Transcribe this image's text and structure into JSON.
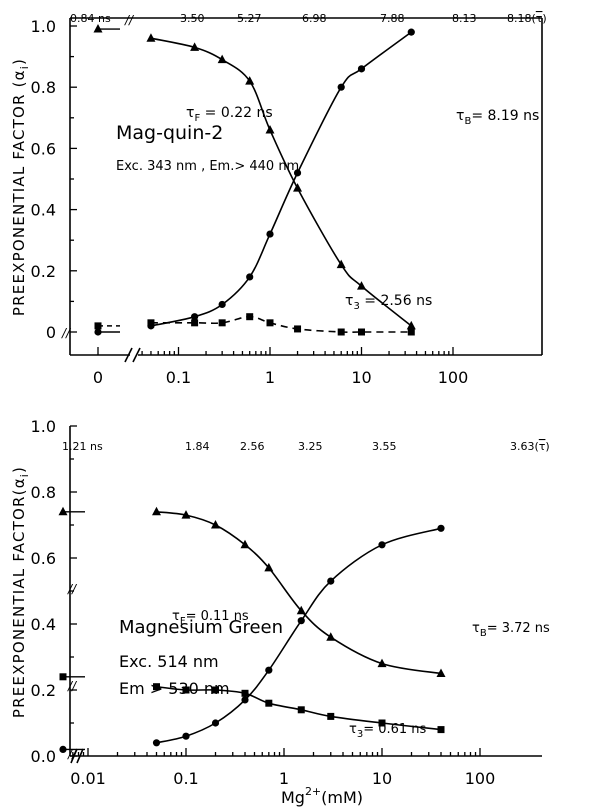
{
  "chart_data": [
    {
      "type": "line",
      "panel": "top",
      "title": "",
      "ylabel": "PREEXPONENTIAL FACTOR (α",
      "ylabel_sub": "i",
      "ylabel_close": ")",
      "xscale": "log",
      "ylim": [
        0,
        1.0
      ],
      "yticks": [
        "0",
        "0.2",
        "0.4",
        "0.6",
        "0.8",
        "1.0"
      ],
      "xticks": [
        "0",
        "0.1",
        "1",
        "10",
        "100"
      ],
      "top_labels": [
        "0.84 ns",
        "3.50",
        "5.27",
        "6.98",
        "7.88",
        "8.13",
        "8.18"
      ],
      "top_tau_bar": "τ",
      "annotations": {
        "dye": "Mag-quin-2",
        "conditions": "Exc. 343 nm , Em.> 440 nm",
        "tauF_main": "τ",
        "tauF_sub": "F",
        "tauF_val": " = 0.22 ns",
        "tauB_main": "τ",
        "tauB_sub": "B",
        "tauB_val": "= 8.19 ns",
        "tau3_main": "τ",
        "tau3_sub": "3",
        "tau3_val": " = 2.56 ns",
        "break_mark": "//"
      },
      "series": [
        {
          "marker": "triangle",
          "style": "solid",
          "zero_value": 0.99,
          "x": [
            0.05,
            0.15,
            0.3,
            0.6,
            1.0,
            2.0,
            6.0,
            10.0,
            35.0
          ],
          "y": [
            0.96,
            0.93,
            0.89,
            0.82,
            0.66,
            0.47,
            0.22,
            0.15,
            0.02
          ]
        },
        {
          "marker": "circle",
          "style": "solid",
          "zero_value": 0.0,
          "x": [
            0.05,
            0.15,
            0.3,
            0.6,
            1.0,
            2.0,
            6.0,
            10.0,
            35.0
          ],
          "y": [
            0.02,
            0.05,
            0.09,
            0.18,
            0.32,
            0.52,
            0.8,
            0.86,
            0.98
          ]
        },
        {
          "marker": "square",
          "style": "dashed",
          "zero_value": 0.02,
          "x": [
            0.05,
            0.15,
            0.3,
            0.6,
            1.0,
            2.0,
            6.0,
            10.0,
            35.0
          ],
          "y": [
            0.03,
            0.03,
            0.03,
            0.05,
            0.03,
            0.01,
            0.0,
            0.0,
            0.0
          ]
        }
      ]
    },
    {
      "type": "line",
      "panel": "bottom",
      "title": "",
      "ylabel": "PREEXPONENTIAL FACTOR(α",
      "ylabel_sub": "i",
      "ylabel_close": ")",
      "xlabel": "Mg",
      "xlabel_sup": "2+",
      "xlabel_unit": "(mM)",
      "xscale": "log",
      "ylim": [
        0,
        1.0
      ],
      "yticks": [
        "0.0",
        "0.2",
        "0.4",
        "0.6",
        "0.8",
        "1.0"
      ],
      "xticks": [
        "0.01",
        "0.1",
        "1",
        "10",
        "100"
      ],
      "top_labels": [
        "1.21 ns",
        "1.84",
        "2.56",
        "3.25",
        "3.55",
        "3.63"
      ],
      "top_tau_bar": "τ",
      "annotations": {
        "dye": "Magnesium Green",
        "exc": "Exc. 514 nm",
        "em": "Em > 530 nm",
        "tauF_main": "τ",
        "tauF_sub": "F",
        "tauF_val": "= 0.11 ns",
        "tauB_main": "τ",
        "tauB_sub": "B",
        "tauB_val": "= 3.72 ns",
        "tau3_main": "τ",
        "tau3_sub": "3",
        "tau3_val": "= 0.61 ns",
        "break_mark": "//"
      },
      "series": [
        {
          "marker": "triangle",
          "style": "solid",
          "zero_value": 0.74,
          "x": [
            0.05,
            0.1,
            0.2,
            0.4,
            0.7,
            1.5,
            3.0,
            10.0,
            40.0
          ],
          "y": [
            0.74,
            0.73,
            0.7,
            0.64,
            0.57,
            0.44,
            0.36,
            0.28,
            0.25
          ]
        },
        {
          "marker": "circle",
          "style": "solid",
          "zero_value": 0.02,
          "x": [
            0.05,
            0.1,
            0.2,
            0.4,
            0.7,
            1.5,
            3.0,
            10.0,
            40.0
          ],
          "y": [
            0.04,
            0.06,
            0.1,
            0.17,
            0.26,
            0.41,
            0.53,
            0.64,
            0.69
          ]
        },
        {
          "marker": "square",
          "style": "solid",
          "zero_value": 0.24,
          "x": [
            0.05,
            0.1,
            0.2,
            0.4,
            0.7,
            1.5,
            3.0,
            10.0,
            40.0
          ],
          "y": [
            0.21,
            0.2,
            0.2,
            0.19,
            0.16,
            0.14,
            0.12,
            0.1,
            0.08
          ]
        }
      ]
    }
  ]
}
